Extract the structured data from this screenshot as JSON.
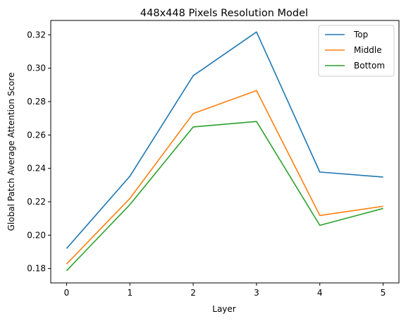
{
  "chart_data": {
    "type": "line",
    "title": "448x448 Pixels Resolution Model",
    "xlabel": "Layer",
    "ylabel": "Global Patch Average Attention Score",
    "x": [
      0,
      1,
      2,
      3,
      4,
      5
    ],
    "x_ticks": [
      "0",
      "1",
      "2",
      "3",
      "4",
      "5"
    ],
    "y_ticks": [
      "0.18",
      "0.20",
      "0.22",
      "0.24",
      "0.26",
      "0.28",
      "0.30",
      "0.32"
    ],
    "xlim": [
      -0.25,
      5.25
    ],
    "ylim": [
      0.1714,
      0.3286
    ],
    "grid": false,
    "legend_position": "top-right",
    "series": [
      {
        "name": "Top",
        "color": "#1f77b4",
        "values": [
          0.192,
          0.2353,
          0.2955,
          0.3217,
          0.2378,
          0.2348
        ]
      },
      {
        "name": "Middle",
        "color": "#ff7f0e",
        "values": [
          0.1827,
          0.222,
          0.2728,
          0.2866,
          0.2118,
          0.2173
        ]
      },
      {
        "name": "Bottom",
        "color": "#2ca02c",
        "values": [
          0.1787,
          0.2183,
          0.2648,
          0.2681,
          0.2059,
          0.216
        ]
      }
    ]
  }
}
